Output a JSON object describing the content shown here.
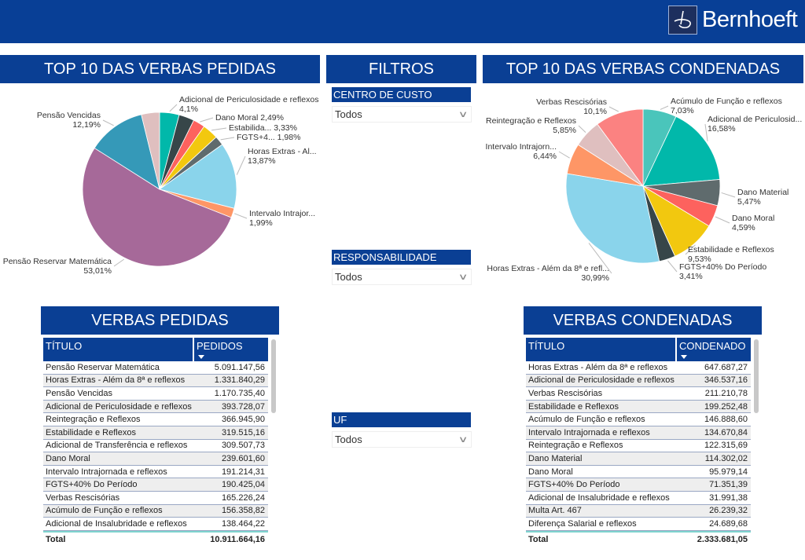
{
  "header": {
    "brand": "Bernhoeft"
  },
  "panels": {
    "top_pedidas": "TOP 10 DAS VERBAS PEDIDAS",
    "filtros": "FILTROS",
    "top_condenadas": "TOP 10 DAS VERBAS CONDENADAS",
    "verbas_pedidas": "VERBAS PEDIDAS",
    "verbas_condenadas": "VERBAS CONDENADAS"
  },
  "filters": [
    {
      "label": "CENTRO DE CUSTO",
      "value": "Todos"
    },
    {
      "label": "RESPONSABILIDADE",
      "value": "Todos"
    },
    {
      "label": "UF",
      "value": "Todos"
    }
  ],
  "chart_data": [
    {
      "type": "pie",
      "title": "TOP 10 DAS VERBAS PEDIDAS",
      "slices": [
        {
          "label": "Adicional de Periculosidade e reflexos",
          "pct": "4,1%",
          "value": 4.1,
          "color": "#01b8aa"
        },
        {
          "label": "",
          "pct": "",
          "value": 3.22,
          "color": "#374649"
        },
        {
          "label": "Dano Moral",
          "pct": "2,49%",
          "value": 2.49,
          "color": "#fd625e"
        },
        {
          "label": "Estabilida...",
          "pct": "3,33%",
          "value": 3.33,
          "color": "#f2c80f"
        },
        {
          "label": "FGTS+4...",
          "pct": "1,98%",
          "value": 1.98,
          "color": "#5f6b6d"
        },
        {
          "label": "Horas Extras - Al...",
          "pct": "13,87%",
          "value": 13.87,
          "color": "#8ad4eb"
        },
        {
          "label": "Intervalo Intrajor...",
          "pct": "1,99%",
          "value": 1.99,
          "color": "#fe9666"
        },
        {
          "label": "Pensão Reservar Matemática",
          "pct": "53,01%",
          "value": 53.01,
          "color": "#a66999"
        },
        {
          "label": "Pensão Vencidas",
          "pct": "12,19%",
          "value": 12.19,
          "color": "#3599b8"
        },
        {
          "label": "",
          "pct": "",
          "value": 3.82,
          "color": "#dfbfbf"
        }
      ]
    },
    {
      "type": "pie",
      "title": "TOP 10 DAS VERBAS CONDENADAS",
      "slices": [
        {
          "label": "Acúmulo de Função e reflexos",
          "pct": "7,03%",
          "value": 7.03,
          "color": "#4ac5bb"
        },
        {
          "label": "Adicional de Periculosid...",
          "pct": "16,58%",
          "value": 16.58,
          "color": "#01b8aa"
        },
        {
          "label": "Dano Material",
          "pct": "5,47%",
          "value": 5.47,
          "color": "#5f6b6d"
        },
        {
          "label": "Dano Moral",
          "pct": "4,59%",
          "value": 4.59,
          "color": "#fd625e"
        },
        {
          "label": "Estabilidade e Reflexos",
          "pct": "9,53%",
          "value": 9.53,
          "color": "#f2c80f"
        },
        {
          "label": "FGTS+40% Do Período",
          "pct": "3,41%",
          "value": 3.41,
          "color": "#374649"
        },
        {
          "label": "Horas Extras - Além da 8ª e refl...",
          "pct": "30,99%",
          "value": 30.99,
          "color": "#8ad4eb"
        },
        {
          "label": "Intervalo Intrajorn...",
          "pct": "6,44%",
          "value": 6.44,
          "color": "#fe9666"
        },
        {
          "label": "Reintegração e Reflexos",
          "pct": "5,85%",
          "value": 5.85,
          "color": "#dfbfbf"
        },
        {
          "label": "Verbas Rescisórias",
          "pct": "10,1%",
          "value": 10.1,
          "color": "#fb8281"
        }
      ]
    }
  ],
  "tables": {
    "pedidas": {
      "col_title": "TÍTULO",
      "col_value": "PEDIDOS",
      "total_label": "Total",
      "total": "10.911.664,16",
      "rows": [
        [
          "Pensão Reservar Matemática",
          "5.091.147,56"
        ],
        [
          "Horas Extras - Além da 8ª e reflexos",
          "1.331.840,29"
        ],
        [
          "Pensão Vencidas",
          "1.170.735,40"
        ],
        [
          "Adicional de Periculosidade e reflexos",
          "393.728,07"
        ],
        [
          "Reintegração e Reflexos",
          "366.945,90"
        ],
        [
          "Estabilidade e Reflexos",
          "319.515,16"
        ],
        [
          "Adicional de Transferência e reflexos",
          "309.507,73"
        ],
        [
          "Dano Moral",
          "239.601,60"
        ],
        [
          "Intervalo Intrajornada e reflexos",
          "191.214,31"
        ],
        [
          "FGTS+40% Do Período",
          "190.425,04"
        ],
        [
          "Verbas Rescisórias",
          "165.226,24"
        ],
        [
          "Acúmulo de Função e reflexos",
          "156.358,82"
        ],
        [
          "Adicional de Insalubridade e reflexos",
          "138.464,22"
        ]
      ]
    },
    "condenadas": {
      "col_title": "TÍTULO",
      "col_value": "CONDENADO",
      "total_label": "Total",
      "total": "2.333.681,05",
      "rows": [
        [
          "Horas Extras - Além da 8ª e reflexos",
          "647.687,27"
        ],
        [
          "Adicional de Periculosidade e reflexos",
          "346.537,16"
        ],
        [
          "Verbas Rescisórias",
          "211.210,78"
        ],
        [
          "Estabilidade e Reflexos",
          "199.252,48"
        ],
        [
          "Acúmulo de Função e reflexos",
          "146.888,60"
        ],
        [
          "Intervalo Intrajornada e reflexos",
          "134.670,84"
        ],
        [
          "Reintegração e Reflexos",
          "122.315,69"
        ],
        [
          "Dano Material",
          "114.302,02"
        ],
        [
          "Dano Moral",
          "95.979,14"
        ],
        [
          "FGTS+40% Do Período",
          "71.351,39"
        ],
        [
          "Adicional de Insalubridade e reflexos",
          "31.991,38"
        ],
        [
          "Multa Art. 467",
          "26.239,32"
        ],
        [
          "Diferença Salarial e reflexos",
          "24.689,68"
        ]
      ]
    }
  }
}
